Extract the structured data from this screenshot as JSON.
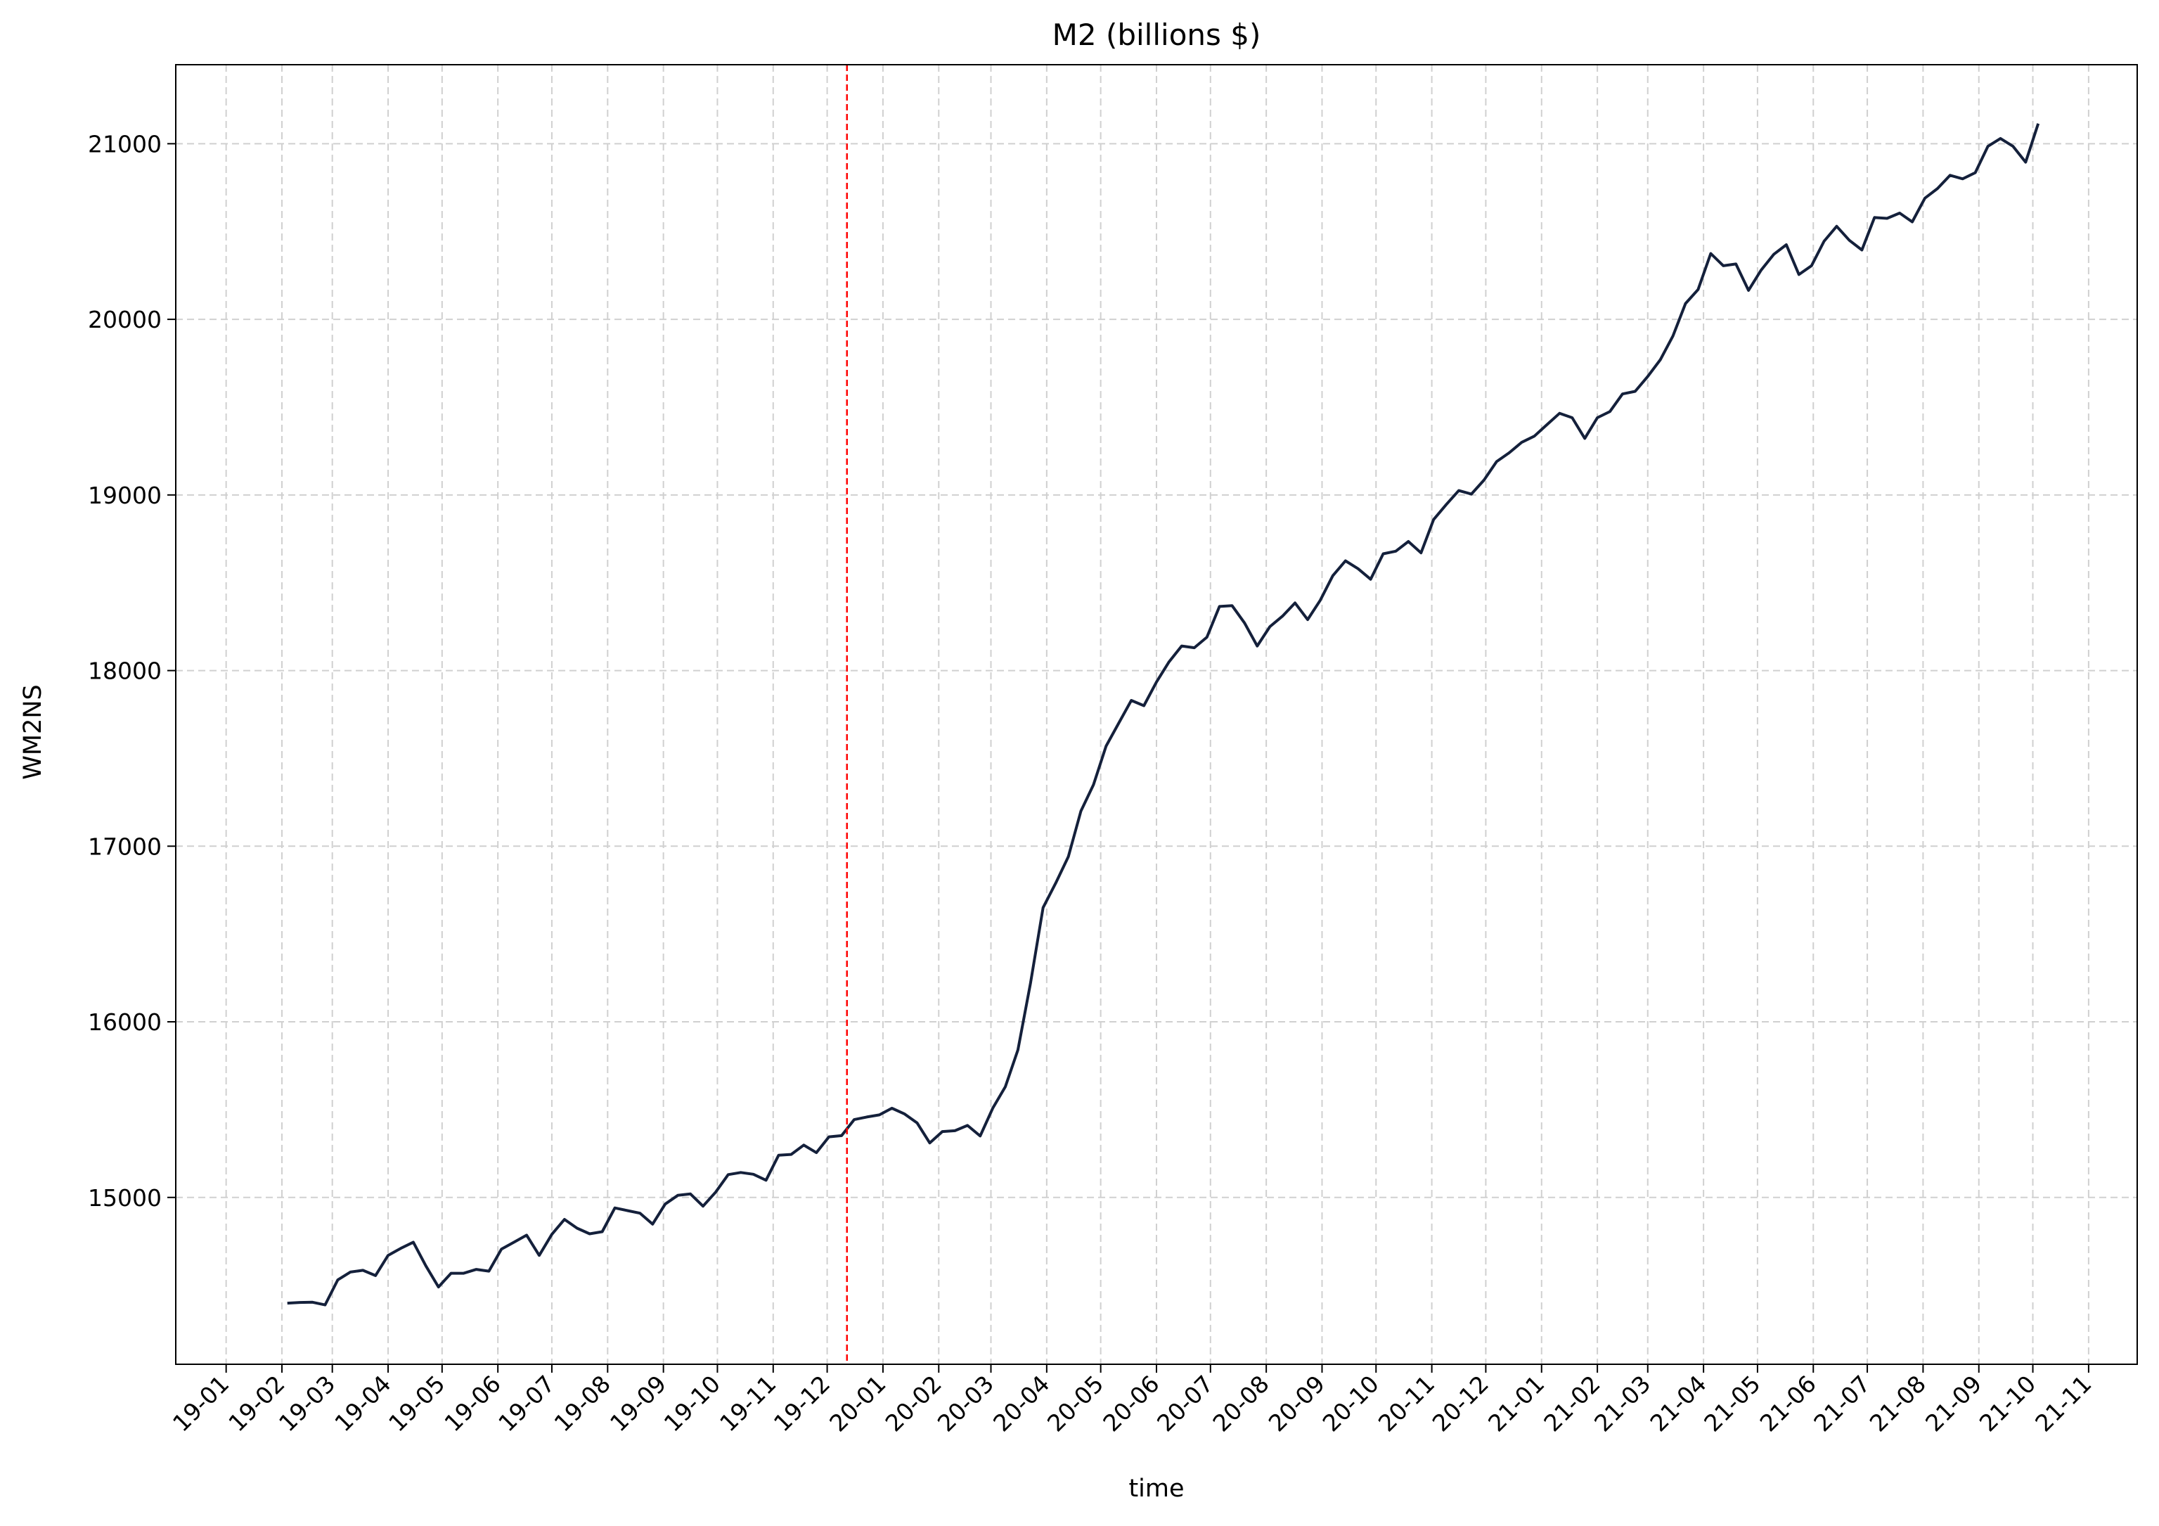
{
  "chart_data": {
    "type": "line",
    "title": "M2 (billions $)",
    "xlabel": "time",
    "ylabel": "WM2NS",
    "grid": true,
    "legend": "none",
    "xlim": [
      "2018-12-04",
      "2021-11-28"
    ],
    "ylim": [
      14050,
      21450
    ],
    "yticks": [
      15000,
      16000,
      17000,
      18000,
      19000,
      20000,
      21000
    ],
    "xticks": [
      "19-01",
      "19-02",
      "19-03",
      "19-04",
      "19-05",
      "19-06",
      "19-07",
      "19-08",
      "19-09",
      "19-10",
      "19-11",
      "19-12",
      "20-01",
      "20-02",
      "20-03",
      "20-04",
      "20-05",
      "20-06",
      "20-07",
      "20-08",
      "20-09",
      "20-10",
      "20-11",
      "20-12",
      "21-01",
      "21-02",
      "21-03",
      "21-04",
      "21-05",
      "21-06",
      "21-07",
      "21-08",
      "21-09",
      "21-10",
      "21-11"
    ],
    "vline": {
      "date": "2019-12-12",
      "color": "#ff0000",
      "style": "dashed"
    },
    "series": [
      {
        "color": "#14203b",
        "start_date": "2019-02-04",
        "step_days": 7,
        "values": [
          14398,
          14402,
          14403,
          14388,
          14530,
          14575,
          14585,
          14555,
          14670,
          14710,
          14745,
          14610,
          14490,
          14568,
          14568,
          14590,
          14580,
          14706,
          14745,
          14785,
          14670,
          14790,
          14875,
          14825,
          14793,
          14805,
          14940,
          14925,
          14910,
          14848,
          14962,
          15012,
          15020,
          14950,
          15030,
          15130,
          15142,
          15132,
          15098,
          15240,
          15245,
          15298,
          15255,
          15345,
          15352,
          15443,
          15458,
          15470,
          15508,
          15475,
          15424,
          15310,
          15375,
          15380,
          15410,
          15350,
          15508,
          15630,
          15840,
          16220,
          16650,
          16790,
          16940,
          17200,
          17350,
          17570,
          17700,
          17830,
          17800,
          17935,
          18050,
          18140,
          18130,
          18190,
          18365,
          18370,
          18270,
          18140,
          18250,
          18310,
          18385,
          18290,
          18400,
          18540,
          18625,
          18580,
          18520,
          18665,
          18680,
          18735,
          18670,
          18860,
          18945,
          19025,
          19005,
          19085,
          19190,
          19240,
          19300,
          19335,
          19400,
          19465,
          19440,
          19322,
          19440,
          19475,
          19575,
          19590,
          19675,
          19770,
          19905,
          20090,
          20170,
          20375,
          20305,
          20315,
          20165,
          20280,
          20370,
          20425,
          20255,
          20305,
          20445,
          20530,
          20450,
          20395,
          20580,
          20575,
          20605,
          20555,
          20690,
          20745,
          20820,
          20800,
          20835,
          20985,
          21030,
          20985,
          20895,
          21115
        ]
      }
    ]
  }
}
